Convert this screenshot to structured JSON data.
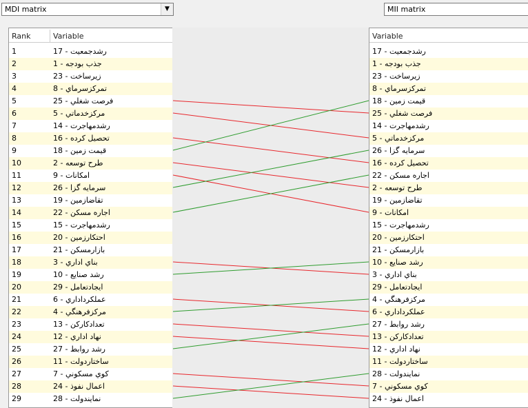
{
  "left_combo": {
    "label": "MDI matrix"
  },
  "right_combo": {
    "label": "MII matrix"
  },
  "left_table": {
    "headers": [
      "Rank",
      "Variable"
    ],
    "rows": [
      [
        "1",
        "رشدجمعیت - 17"
      ],
      [
        "2",
        "جذب بودجه - 1"
      ],
      [
        "3",
        "زیرساخت - 23"
      ],
      [
        "4",
        "تمرکزسرماي - 8"
      ],
      [
        "5",
        "فرصت شغلي - 25"
      ],
      [
        "6",
        "مرکزخدماتي - 5"
      ],
      [
        "7",
        "رشدمهاجرت - 14"
      ],
      [
        "8",
        "تحصیل کرده - 16"
      ],
      [
        "9",
        "قیمت زمین - 18"
      ],
      [
        "10",
        "طرح توسعه - 2"
      ],
      [
        "11",
        "امکانات - 9"
      ],
      [
        "12",
        "سرمایه گزا - 26"
      ],
      [
        "13",
        "تقاضازمین - 19"
      ],
      [
        "14",
        "اجاره مسکن - 22"
      ],
      [
        "15",
        "رشدمهاجرت - 15"
      ],
      [
        "16",
        "احتکارزمین - 20"
      ],
      [
        "17",
        "بازارمسکن - 21"
      ],
      [
        "18",
        "بناي اداري - 3"
      ],
      [
        "19",
        "رشد صنایع - 10"
      ],
      [
        "20",
        "ایجادتعامل - 29"
      ],
      [
        "21",
        "عملکرداداري - 6"
      ],
      [
        "22",
        "مرکزفرهنگي - 4"
      ],
      [
        "23",
        "تعدادکارکن - 13"
      ],
      [
        "24",
        "نهاد اداري - 12"
      ],
      [
        "25",
        "رشد روابط - 27"
      ],
      [
        "26",
        "ساختاردولت - 11"
      ],
      [
        "27",
        "کوي مسکوني - 7"
      ],
      [
        "28",
        "اعمال نفوذ - 24"
      ],
      [
        "29",
        "نمایندولت - 28"
      ]
    ]
  },
  "right_table": {
    "headers": [
      "Variable"
    ],
    "rows": [
      "رشدجمعیت - 17",
      "جذب بودجه - 1",
      "زیرساخت - 23",
      "تمرکزسرماي - 8",
      "قیمت زمین - 18",
      "فرصت شغلي - 25",
      "رشدمهاجرت - 14",
      "مرکزخدماتي - 5",
      "سرمایه گزا - 26",
      "تحصیل کرده - 16",
      "اجاره مسکن - 22",
      "طرح توسعه - 2",
      "تقاضازمین - 19",
      "امکانات - 9",
      "رشدمهاجرت - 15",
      "احتکارزمین - 20",
      "بازارمسکن - 21",
      "رشد صنایع - 10",
      "بناي اداري - 3",
      "ایجادتعامل - 29",
      "مرکزفرهنگي - 4",
      "عملکرداداري - 6",
      "رشد روابط - 27",
      "تعدادکارکن - 13",
      "نهاد اداري - 12",
      "ساختاردولت - 11",
      "نمایندولت - 28",
      "کوي مسکوني - 7",
      "اعمال نفوذ - 24"
    ]
  }
}
